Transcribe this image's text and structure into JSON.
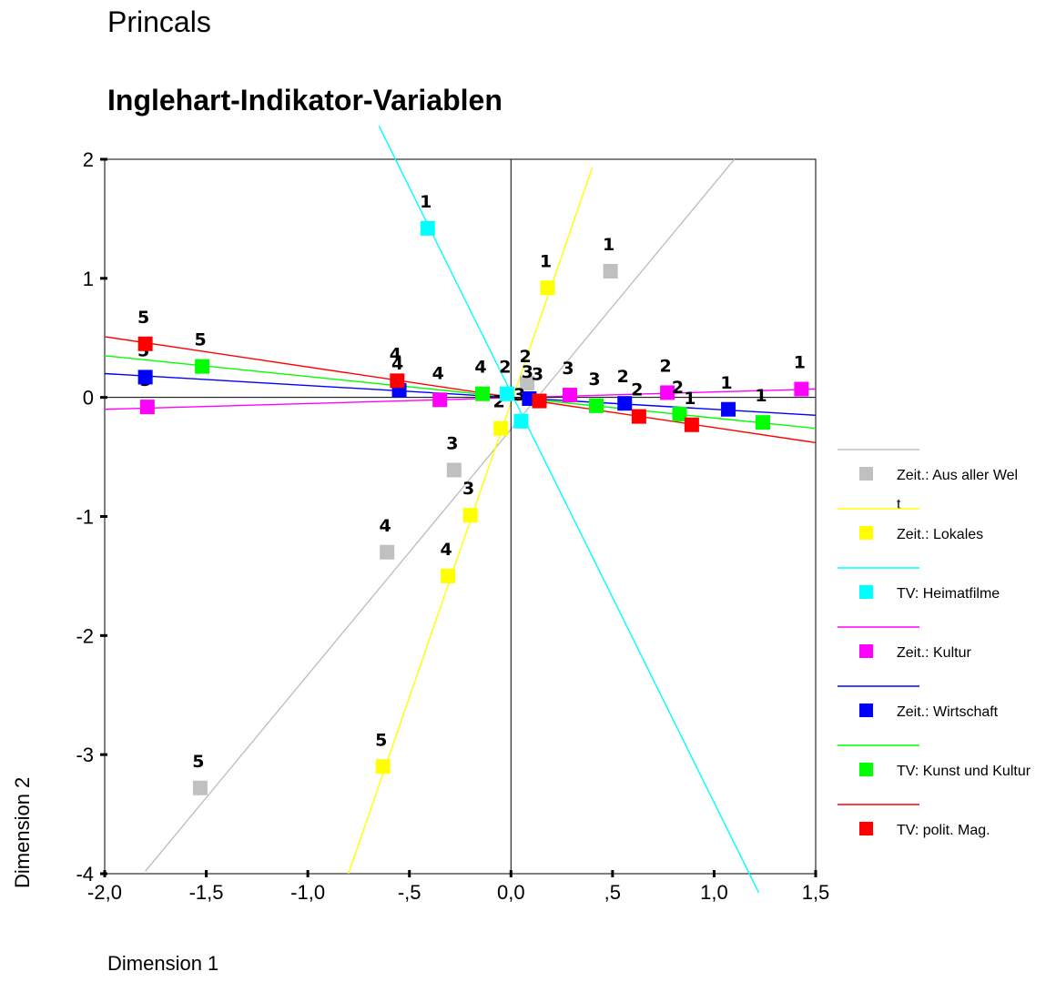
{
  "chart_data": {
    "type": "scatter",
    "title": "Princals",
    "subtitle": "Inglehart-Indikator-Variablen",
    "xlabel": "Dimension 1",
    "ylabel": "Dimension 2",
    "xlim": [
      -2.0,
      1.5
    ],
    "ylim": [
      -4.0,
      2.0
    ],
    "xticks": [
      "-2,0",
      "-1,5",
      "-1,0",
      "-,5",
      "0,0",
      ",5",
      "1,0",
      "1,5"
    ],
    "xtick_values": [
      -2.0,
      -1.5,
      -1.0,
      -0.5,
      0.0,
      0.5,
      1.0,
      1.5
    ],
    "yticks": [
      "2",
      "1",
      "0",
      "-1",
      "-2",
      "-3",
      "-4"
    ],
    "ytick_values": [
      2,
      1,
      0,
      -1,
      -2,
      -3,
      -4
    ],
    "reference_lines": [
      {
        "axis": "x",
        "value": 0
      },
      {
        "axis": "y",
        "value": 0
      }
    ],
    "legend_position": "right",
    "series": [
      {
        "name": "Zeit.: Aus aller Wel\nt",
        "color": "#c0c0c0",
        "vector_line": {
          "x": [
            -1.8,
            1.1
          ],
          "y": [
            -3.98,
            2.0
          ]
        },
        "points": [
          {
            "x": 0.49,
            "y": 1.06,
            "label": "1"
          },
          {
            "x": 0.08,
            "y": 0.12,
            "label": "2"
          },
          {
            "x": -0.28,
            "y": -0.61,
            "label": "3"
          },
          {
            "x": -0.61,
            "y": -1.3,
            "label": "4"
          },
          {
            "x": -1.53,
            "y": -3.28,
            "label": "5"
          }
        ]
      },
      {
        "name": "Zeit.: Lokales",
        "color": "#ffff00",
        "vector_line": {
          "x": [
            -0.8,
            0.4
          ],
          "y": [
            -4.0,
            1.93
          ]
        },
        "points": [
          {
            "x": 0.18,
            "y": 0.92,
            "label": "1"
          },
          {
            "x": -0.05,
            "y": -0.26,
            "label": "2"
          },
          {
            "x": -0.2,
            "y": -0.99,
            "label": "3"
          },
          {
            "x": -0.31,
            "y": -1.5,
            "label": "4"
          },
          {
            "x": -0.63,
            "y": -3.1,
            "label": "5"
          }
        ]
      },
      {
        "name": "TV: Heimatfilme",
        "color": "#00ffff",
        "vector_line": {
          "x": [
            -0.65,
            1.22
          ],
          "y": [
            2.28,
            -4.16
          ]
        },
        "points": [
          {
            "x": -0.41,
            "y": 1.42,
            "label": "1"
          },
          {
            "x": -0.02,
            "y": 0.03,
            "label": "2"
          },
          {
            "x": 0.05,
            "y": -0.2,
            "label": "3"
          }
        ]
      },
      {
        "name": "Zeit.: Kultur",
        "color": "#ff00ff",
        "vector_line": {
          "x": [
            -2.0,
            1.5
          ],
          "y": [
            -0.1,
            0.07
          ]
        },
        "points": [
          {
            "x": 1.43,
            "y": 0.07,
            "label": "1"
          },
          {
            "x": 0.77,
            "y": 0.04,
            "label": "2"
          },
          {
            "x": 0.29,
            "y": 0.02,
            "label": "3"
          },
          {
            "x": -0.35,
            "y": -0.02,
            "label": "4"
          },
          {
            "x": -1.79,
            "y": -0.08,
            "label": "5"
          }
        ]
      },
      {
        "name": "Zeit.: Wirtschaft",
        "color": "#0000ff",
        "vector_line": {
          "x": [
            -2.0,
            1.5
          ],
          "y": [
            0.2,
            -0.15
          ]
        },
        "points": [
          {
            "x": 1.07,
            "y": -0.1,
            "label": "1"
          },
          {
            "x": 0.56,
            "y": -0.05,
            "label": "2"
          },
          {
            "x": 0.09,
            "y": -0.01,
            "label": "3"
          },
          {
            "x": -0.55,
            "y": 0.06,
            "label": "4"
          },
          {
            "x": -1.8,
            "y": 0.17,
            "label": "5"
          }
        ]
      },
      {
        "name": "TV: Kunst und Kultur",
        "color": "#00ff00",
        "vector_line": {
          "x": [
            -2.0,
            1.5
          ],
          "y": [
            0.35,
            -0.26
          ]
        },
        "points": [
          {
            "x": 1.24,
            "y": -0.21,
            "label": "1"
          },
          {
            "x": 0.83,
            "y": -0.14,
            "label": "2"
          },
          {
            "x": 0.42,
            "y": -0.07,
            "label": "3"
          },
          {
            "x": -0.14,
            "y": 0.03,
            "label": "4"
          },
          {
            "x": -1.52,
            "y": 0.26,
            "label": "5"
          }
        ]
      },
      {
        "name": "TV: polit. Mag.",
        "color": "#ff0000",
        "vector_line": {
          "x": [
            -2.0,
            1.5
          ],
          "y": [
            0.51,
            -0.38
          ]
        },
        "points": [
          {
            "x": 0.89,
            "y": -0.23,
            "label": "1"
          },
          {
            "x": 0.63,
            "y": -0.16,
            "label": "2"
          },
          {
            "x": 0.14,
            "y": -0.03,
            "label": "3"
          },
          {
            "x": -0.56,
            "y": 0.14,
            "label": "4"
          },
          {
            "x": -1.8,
            "y": 0.45,
            "label": "5"
          }
        ]
      }
    ]
  }
}
